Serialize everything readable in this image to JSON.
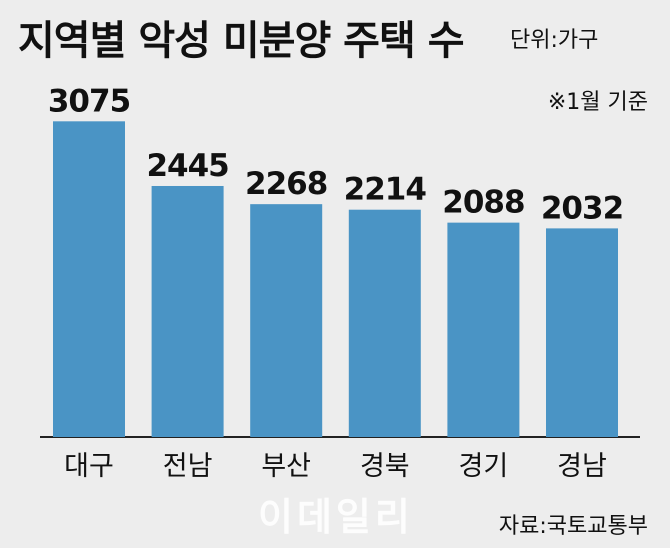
{
  "header": {
    "title": "지역별 악성 미분양 주택 수",
    "unit": "단위:가구",
    "note": "※1월 기준"
  },
  "footer": {
    "watermark": "이데일리",
    "source": "자료:국토교통부"
  },
  "colors": {
    "bar": "#4a94c5",
    "background": "#ededed",
    "axis": "#222222"
  },
  "chart_data": {
    "type": "bar",
    "categories": [
      "대구",
      "전남",
      "부산",
      "경북",
      "경기",
      "경남"
    ],
    "values": [
      3075,
      2445,
      2268,
      2214,
      2088,
      2032
    ],
    "title": "지역별 악성 미분양 주택 수",
    "xlabel": "",
    "ylabel": "",
    "ylim": [
      0,
      3380
    ],
    "grid": false
  }
}
